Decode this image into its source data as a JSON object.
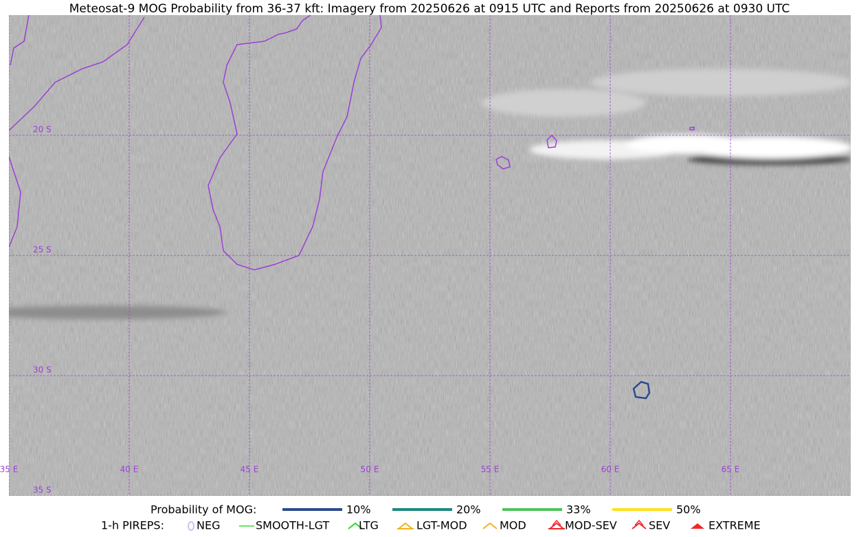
{
  "title": "Meteosat-9 MOG Probability from 36-37 kft: Imagery from 20250626 at 0915 UTC and Reports from 20250626 at 0930 UTC",
  "map": {
    "lat_labels": [
      "20 S",
      "25 S",
      "30 S",
      "35 S"
    ],
    "lon_labels": [
      "35 E",
      "40 E",
      "45 E",
      "50 E",
      "55 E",
      "60 E",
      "65 E"
    ],
    "grid_color": "#9b3fd6",
    "coast_color": "#9b3fd6",
    "contour_color": "#2c4a8c"
  },
  "legend": {
    "probability_title": "Probability of MOG:",
    "probability": [
      {
        "label": "10%",
        "color": "#2c4a8c"
      },
      {
        "label": "20%",
        "color": "#1a8a80"
      },
      {
        "label": "33%",
        "color": "#4cc45a"
      },
      {
        "label": "50%",
        "color": "#ffe01a"
      }
    ],
    "pireps_title": "1-h PIREPS:",
    "pireps": [
      {
        "label": "NEG",
        "color": "#c4c4f4",
        "symbol": "neg"
      },
      {
        "label": "SMOOTH-LGT",
        "color": "#33dd33",
        "symbol": "line"
      },
      {
        "label": "LTG",
        "color": "#22dd22",
        "symbol": "caret"
      },
      {
        "label": "LGT-MOD",
        "color": "#f5b020",
        "symbol": "caret-bar"
      },
      {
        "label": "MOD",
        "color": "#f5b020",
        "symbol": "caret"
      },
      {
        "label": "MOD-SEV",
        "color": "#ee2a2a",
        "symbol": "double-bar"
      },
      {
        "label": "SEV",
        "color": "#ee2a2a",
        "symbol": "double"
      },
      {
        "label": "EXTREME",
        "color": "#ee2a2a",
        "symbol": "filled"
      }
    ]
  }
}
